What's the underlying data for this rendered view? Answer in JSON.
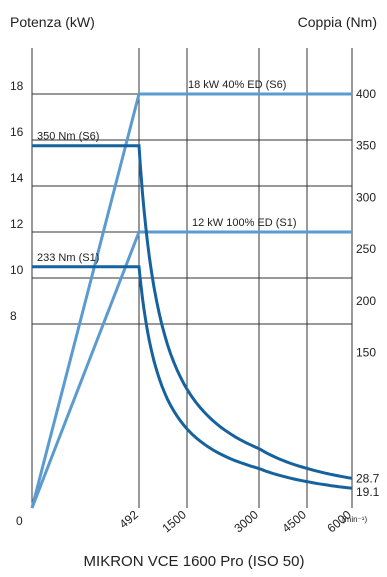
{
  "chart_data": {
    "type": "line",
    "title": "MIKRON VCE 1600 Pro (ISO 50)",
    "ylabel_left": "Potenza (kW)",
    "ylabel_right": "Coppia (Nm)",
    "xunit": "(min⁻¹)",
    "x_ticks": [
      "0",
      "492",
      "1500",
      "3000",
      "4500",
      "6000"
    ],
    "x_positions": [
      0,
      492,
      1500,
      3000,
      4500,
      6000
    ],
    "y_left_ticks": [
      "8",
      "10",
      "12",
      "14",
      "16",
      "18"
    ],
    "y_left_values": [
      8,
      10,
      12,
      14,
      16,
      18
    ],
    "y_right_ticks": [
      "150",
      "200",
      "250",
      "300",
      "350",
      "400"
    ],
    "y_right_values": [
      150,
      200,
      250,
      300,
      350,
      400
    ],
    "ylim_left": [
      0,
      20
    ],
    "ylim_right": [
      0,
      444.44
    ],
    "grid": true,
    "series": [
      {
        "name": "18 kW 40% ED (S6)",
        "axis": "left",
        "color": "#5b9bd0",
        "x": [
          0,
          492,
          1500,
          3000,
          4500,
          6000
        ],
        "y": [
          0,
          18,
          18,
          18,
          18,
          18
        ]
      },
      {
        "name": "12 kW 100% ED  (S1)",
        "axis": "left",
        "color": "#5b9bd0",
        "x": [
          0,
          492,
          1500,
          3000,
          4500,
          6000
        ],
        "y": [
          0,
          12,
          12,
          12,
          12,
          12
        ]
      },
      {
        "name": "350 Nm (S6)",
        "axis": "right",
        "color": "#15629e",
        "x": [
          0,
          492,
          1500,
          3000,
          4500,
          6000
        ],
        "y": [
          350,
          350,
          115,
          57,
          38,
          28.7
        ]
      },
      {
        "name": "233 Nm (S1)",
        "axis": "right",
        "color": "#15629e",
        "x": [
          0,
          492,
          1500,
          3000,
          4500,
          6000
        ],
        "y": [
          233,
          233,
          76,
          38,
          25,
          19.1
        ]
      }
    ],
    "end_labels": [
      "28.7",
      "19.1"
    ]
  }
}
